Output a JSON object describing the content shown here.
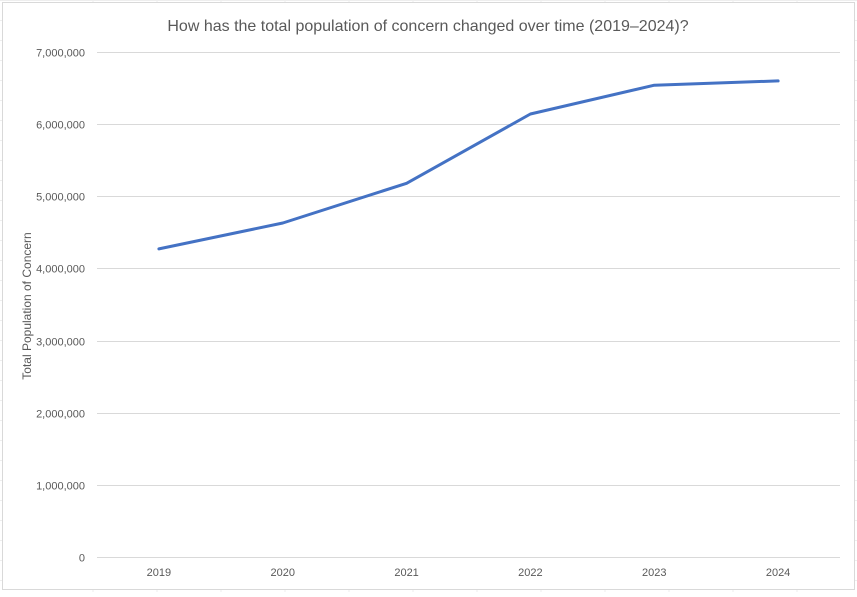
{
  "chart_data": {
    "type": "line",
    "title": "How has the total population of concern changed over time (2019–2024)?",
    "xlabel": "",
    "ylabel": "Total Population of Concern",
    "categories": [
      "2019",
      "2020",
      "2021",
      "2022",
      "2023",
      "2024"
    ],
    "series": [
      {
        "values": [
          4270000,
          4630000,
          5180000,
          6140000,
          6540000,
          6600000
        ],
        "color": "#4472c4"
      }
    ],
    "ylim": [
      0,
      7000000
    ],
    "yticks": [
      0,
      1000000,
      2000000,
      3000000,
      4000000,
      5000000,
      6000000,
      7000000
    ],
    "ytick_labels": [
      "0",
      "1,000,000",
      "2,000,000",
      "3,000,000",
      "4,000,000",
      "5,000,000",
      "6,000,000",
      "7,000,000"
    ],
    "grid": true,
    "legend": "none"
  }
}
